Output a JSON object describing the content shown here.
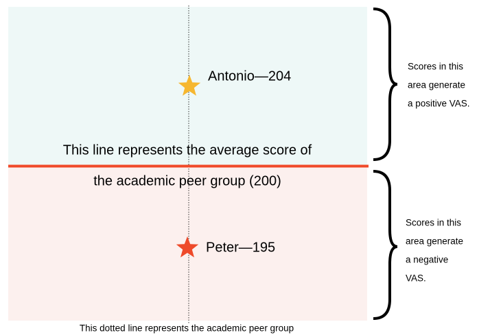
{
  "diagram": {
    "above_label": "Antonio—204",
    "below_label": "Peter—195",
    "average_line_text": [
      "This line represents the average score of",
      "the academic peer group (200)"
    ],
    "positive_note": [
      "Scores in this",
      "area generate",
      "a positive VAS."
    ],
    "negative_note": [
      "Scores in this",
      "area generate",
      "a negative",
      "VAS."
    ],
    "dotted_line_caption": "This dotted line represents the academic peer group"
  }
}
